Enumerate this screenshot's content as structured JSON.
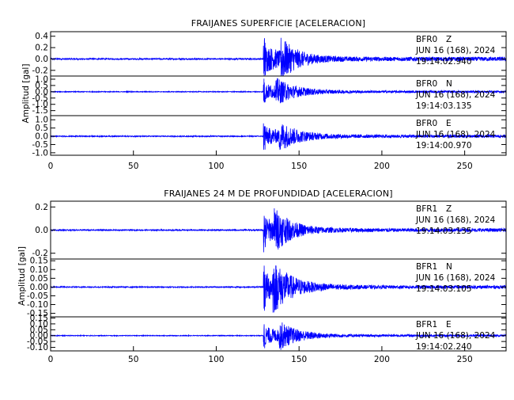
{
  "colors": {
    "trace": "#0000ff",
    "axis": "#000000",
    "text": "#000000"
  },
  "chart_data": [
    {
      "type": "line",
      "title": "FRAIJANES SUPERFICIE [ACELERACION]",
      "ylabel": "Amplitud [gal]",
      "xlim": [
        0,
        275
      ],
      "xticks": [
        "0",
        "50",
        "100",
        "150",
        "200",
        "250"
      ],
      "event_time_s": 128.5,
      "series": [
        {
          "name": "BFR0",
          "component": "Z",
          "date": "JUN 16 (168), 2024",
          "start_time": "19:14:02.940",
          "ylim": [
            -0.3,
            0.48
          ],
          "yticks": [
            "0.4",
            "0.2",
            "0.0",
            "-0.2"
          ],
          "peak": 0.42,
          "noise": 0.012,
          "second_burst_s": 139,
          "decay_s": 14
        },
        {
          "name": "BFR0",
          "component": "N",
          "date": "JUN 16 (168), 2024",
          "start_time": "19:14:03.135",
          "ylim": [
            -1.9,
            1.25
          ],
          "yticks": [
            "1.0",
            "0.5",
            "0.0",
            "-0.5",
            "-1.0",
            "-1.5"
          ],
          "peak": 1.1,
          "noise": 0.03,
          "second_burst_s": 136,
          "decay_s": 16
        },
        {
          "name": "BFR0",
          "component": "E",
          "date": "JUN 16 (168), 2024",
          "start_time": "19:14:00.970",
          "ylim": [
            -1.15,
            1.25
          ],
          "yticks": [
            "1.0",
            "0.5",
            "0.0",
            "-0.5",
            "-1.0"
          ],
          "peak": 0.95,
          "noise": 0.03,
          "second_burst_s": 138,
          "decay_s": 16
        }
      ]
    },
    {
      "type": "line",
      "title": "FRAIJANES 24 M DE PROFUNDIDAD [ACELERACION]",
      "ylabel": "Amplitud [gal]",
      "xlim": [
        0,
        275
      ],
      "xticks": [
        "0",
        "50",
        "100",
        "150",
        "200",
        "250"
      ],
      "event_time_s": 128.5,
      "series": [
        {
          "name": "BFR1",
          "component": "Z",
          "date": "JUN 16 (168), 2024",
          "start_time": "19:14:03.135",
          "ylim": [
            -0.25,
            0.25
          ],
          "yticks": [
            "0.2",
            "0.0",
            "-0.2"
          ],
          "peak": 0.2,
          "noise": 0.005,
          "second_burst_s": 135,
          "decay_s": 14
        },
        {
          "name": "BFR1",
          "component": "N",
          "date": "JUN 16 (168), 2024",
          "start_time": "19:14:03.105",
          "ylim": [
            -0.17,
            0.16
          ],
          "yticks": [
            "0.15",
            "0.10",
            "0.05",
            "0.00",
            "-0.05",
            "-0.10",
            "-0.15"
          ],
          "peak": 0.15,
          "noise": 0.003,
          "second_burst_s": 134,
          "decay_s": 16
        },
        {
          "name": "BFR1",
          "component": "E",
          "date": "JUN 16 (168), 2024",
          "start_time": "19:14:02.240",
          "ylim": [
            -0.13,
            0.16
          ],
          "yticks": [
            "0.15",
            "0.10",
            "0.05",
            "0.00",
            "-0.05",
            "-0.10"
          ],
          "peak": 0.13,
          "noise": 0.003,
          "second_burst_s": 138,
          "decay_s": 16
        }
      ]
    }
  ]
}
